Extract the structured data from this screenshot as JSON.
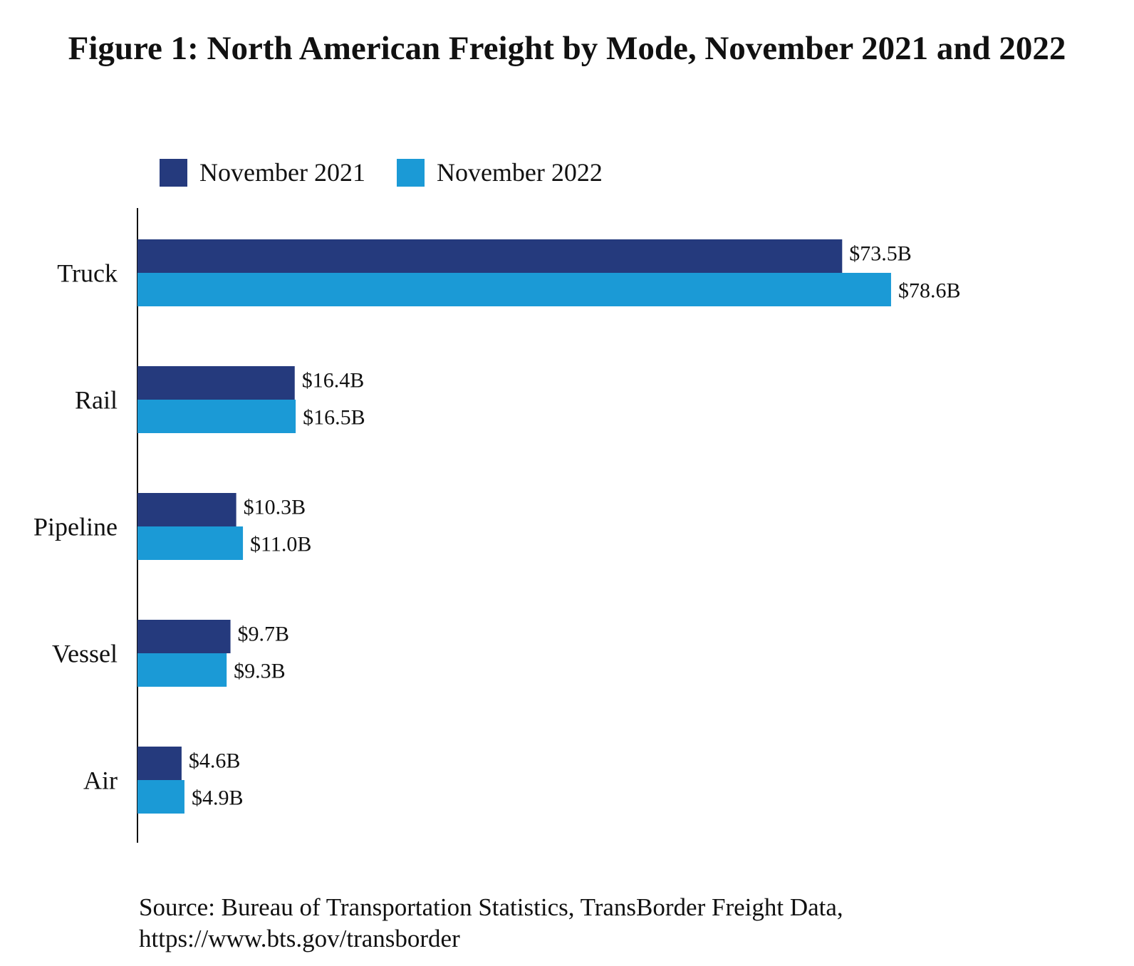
{
  "title": "Figure 1: North American Freight by Mode, November 2021 and 2022",
  "legend": [
    {
      "label": "November 2021",
      "color": "#253a7d"
    },
    {
      "label": "November 2022",
      "color": "#1b9ad6"
    }
  ],
  "chart_data": {
    "type": "bar",
    "orientation": "horizontal",
    "title": "Figure 1: North American Freight by Mode, November 2021 and 2022",
    "categories": [
      "Truck",
      "Rail",
      "Pipeline",
      "Vessel",
      "Air"
    ],
    "series": [
      {
        "name": "November 2021",
        "color": "#253a7d",
        "values": [
          73.5,
          16.4,
          10.3,
          9.7,
          4.6
        ],
        "labels": [
          "$73.5B",
          "$16.4B",
          "$10.3B",
          "$9.7B",
          "$4.6B"
        ]
      },
      {
        "name": "November 2022",
        "color": "#1b9ad6",
        "values": [
          78.6,
          16.5,
          11.0,
          9.3,
          4.9
        ],
        "labels": [
          "$78.6B",
          "$16.5B",
          "$11.0B",
          "$9.3B",
          "$4.9B"
        ]
      }
    ],
    "units": "billions of US dollars",
    "xlim": [
      0,
      100
    ],
    "xlabel": "",
    "ylabel": "",
    "grid": false,
    "legend_position": "top-left"
  },
  "source": {
    "line1": "Source: Bureau of Transportation Statistics, TransBorder Freight Data,",
    "line2": "https://www.bts.gov/transborder"
  }
}
